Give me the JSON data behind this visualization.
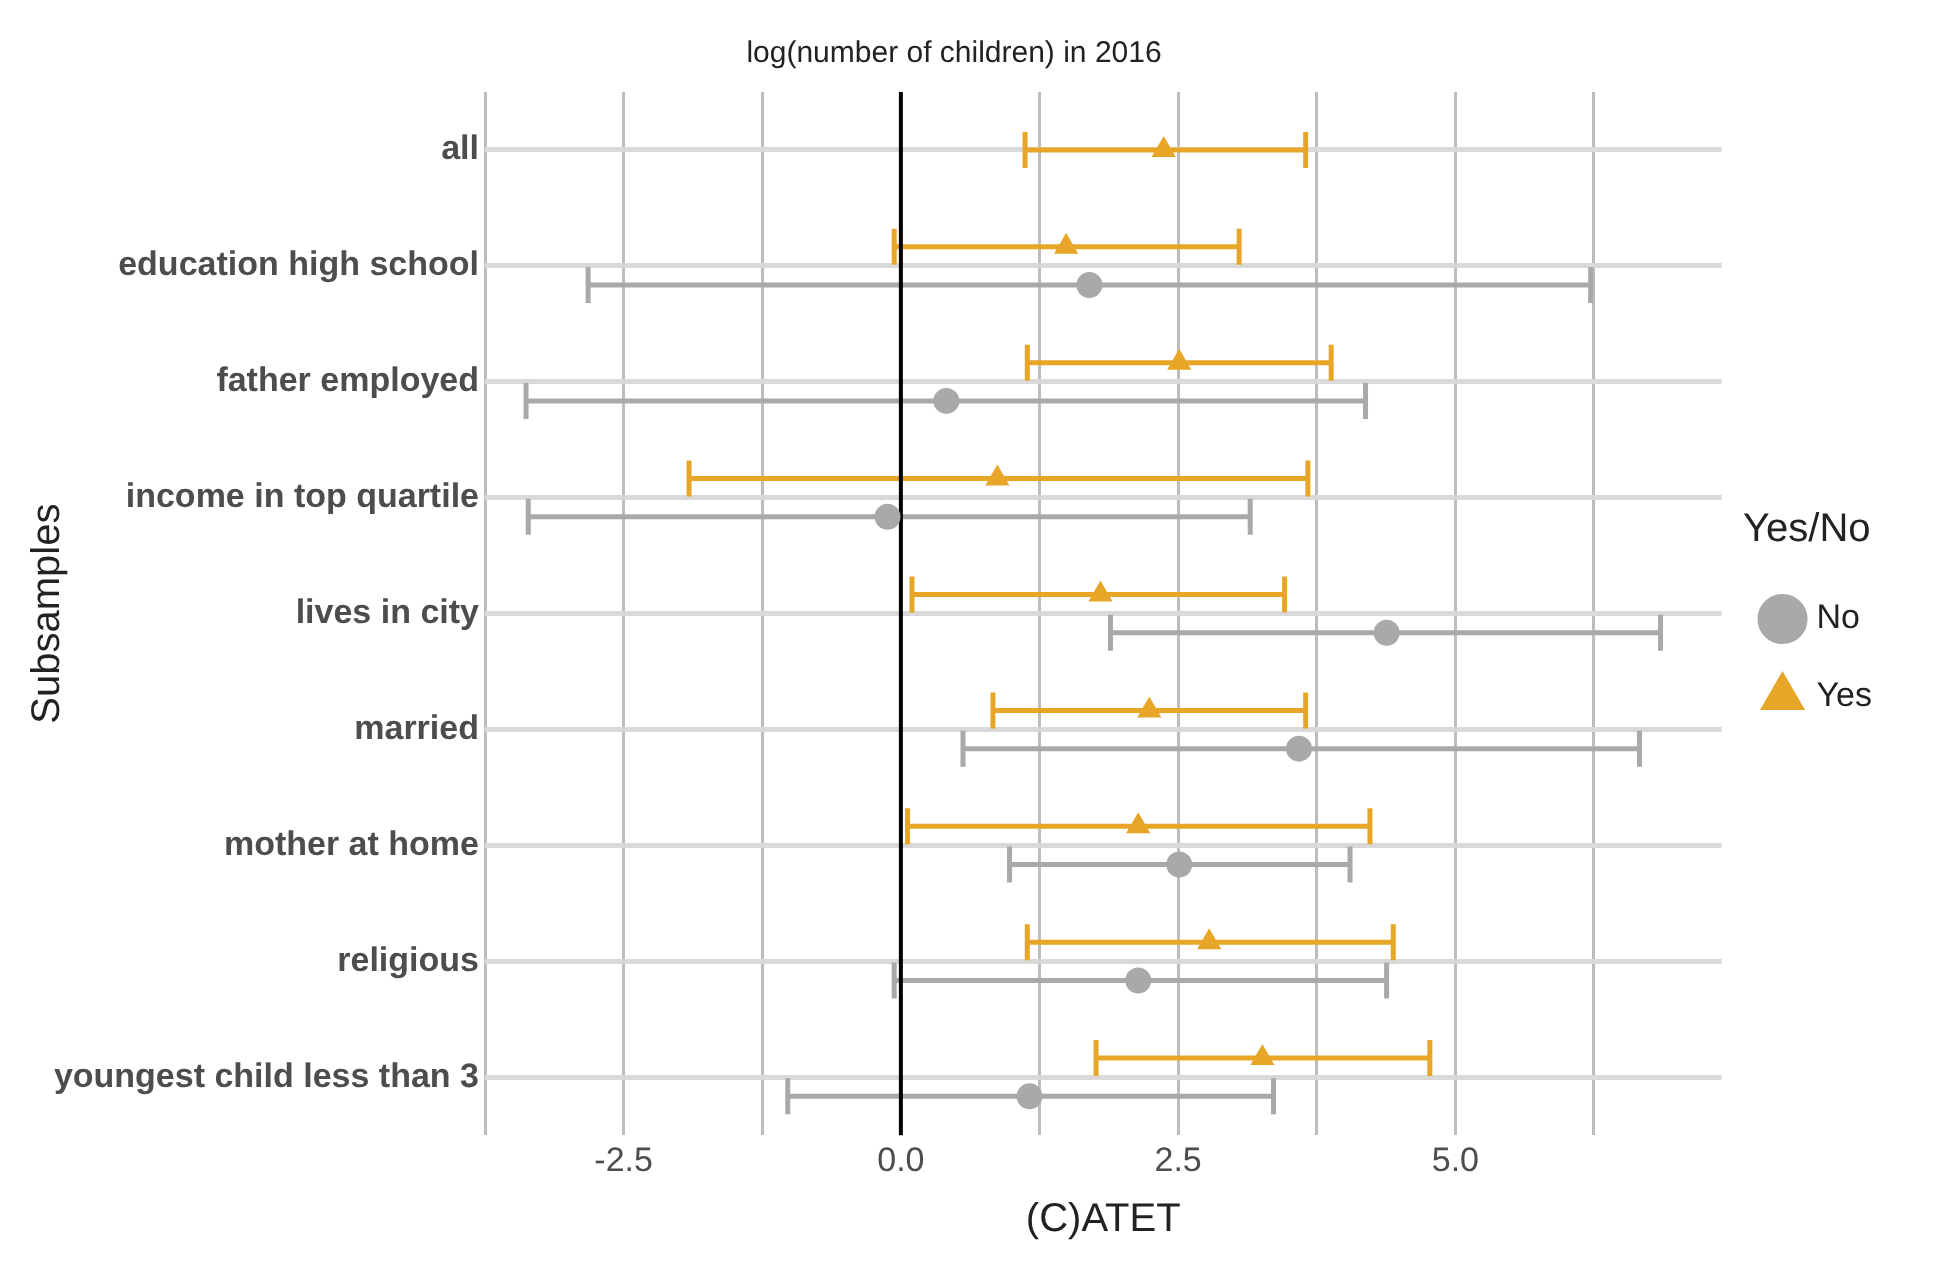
{
  "chart_data": {
    "type": "scatter",
    "orientation": "horizontal",
    "title": "log(number of children) in 2016",
    "xlabel": "(C)ATET",
    "ylabel": "Subsamples",
    "legend_title": "Yes/No",
    "legend": "right",
    "grid": true,
    "categories": [
      "all",
      "education high school",
      "father employed",
      "income in top quartile",
      "lives in city",
      "married",
      "mother at home",
      "religious",
      "youngest child less than 3"
    ],
    "xlim": [
      -3.75,
      7.4
    ],
    "xticks": [
      {
        "value": -3.75,
        "label": null
      },
      {
        "value": -2.5,
        "label": "-2.5"
      },
      {
        "value": -1.25,
        "label": null
      },
      {
        "value": 0,
        "label": "0.0"
      },
      {
        "value": 1.25,
        "label": null
      },
      {
        "value": 2.5,
        "label": "2.5"
      },
      {
        "value": 3.75,
        "label": null
      },
      {
        "value": 5,
        "label": "5.0"
      },
      {
        "value": 6.25,
        "label": null
      }
    ],
    "ref_lines": [
      {
        "axis": "x",
        "value": 0,
        "color": "#000000"
      }
    ],
    "series": [
      {
        "name": "No",
        "color": "#a9a9a9",
        "marker": "circle",
        "values": [
          null,
          1.7,
          0.41,
          -0.12,
          4.38,
          3.59,
          2.51,
          2.14,
          1.16
        ],
        "errors": [
          null,
          [
            -2.82,
            6.22
          ],
          [
            -3.38,
            4.19
          ],
          [
            -3.36,
            3.15
          ],
          [
            1.89,
            6.85
          ],
          [
            0.56,
            6.66
          ],
          [
            0.98,
            4.05
          ],
          [
            -0.06,
            4.38
          ],
          [
            -1.02,
            3.36
          ]
        ]
      },
      {
        "name": "Yes",
        "color": "#e8a628",
        "marker": "triangle",
        "values": [
          2.37,
          1.49,
          2.51,
          0.87,
          1.8,
          2.24,
          2.14,
          2.78,
          3.26
        ],
        "errors": [
          [
            1.12,
            3.65
          ],
          [
            -0.06,
            3.05
          ],
          [
            1.14,
            3.88
          ],
          [
            -1.91,
            3.67
          ],
          [
            0.1,
            3.46
          ],
          [
            0.83,
            3.65
          ],
          [
            0.06,
            4.23
          ],
          [
            1.14,
            4.44
          ],
          [
            1.76,
            4.77
          ]
        ]
      }
    ]
  }
}
